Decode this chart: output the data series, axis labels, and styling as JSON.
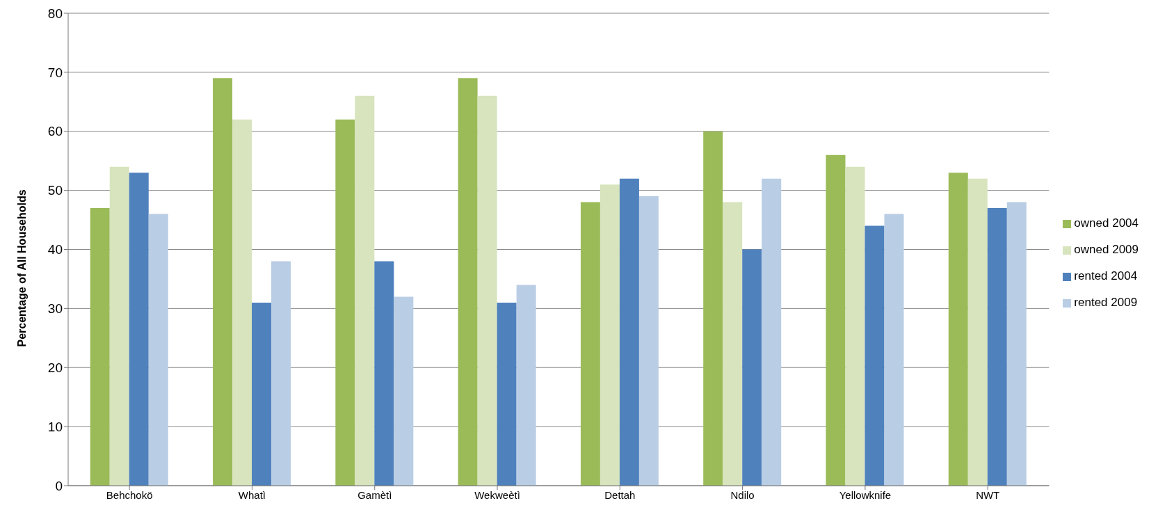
{
  "chart_data": {
    "type": "bar",
    "ylabel": "Percentage of All Households",
    "categories": [
      "Behchokö",
      "Whatì",
      "Gamètì",
      "Wekweètì",
      "Dettah",
      "Ndilo",
      "Yellowknife",
      "NWT"
    ],
    "series": [
      {
        "name": "owned 2004",
        "color": "#9bbb59",
        "values": [
          47,
          69,
          62,
          69,
          48,
          60,
          56,
          53
        ]
      },
      {
        "name": "owned 2009",
        "color": "#d7e4bd",
        "values": [
          54,
          62,
          66,
          66,
          51,
          48,
          54,
          52
        ]
      },
      {
        "name": "rented 2004",
        "color": "#4f81bd",
        "values": [
          53,
          31,
          38,
          31,
          52,
          40,
          44,
          47
        ]
      },
      {
        "name": "rented 2009",
        "color": "#b9cde5",
        "values": [
          46,
          38,
          32,
          34,
          49,
          52,
          46,
          48
        ]
      }
    ],
    "ylim": [
      0,
      80
    ],
    "yticks": [
      0,
      10,
      20,
      30,
      40,
      50,
      60,
      70,
      80
    ],
    "grid": "y",
    "legend": "right"
  }
}
